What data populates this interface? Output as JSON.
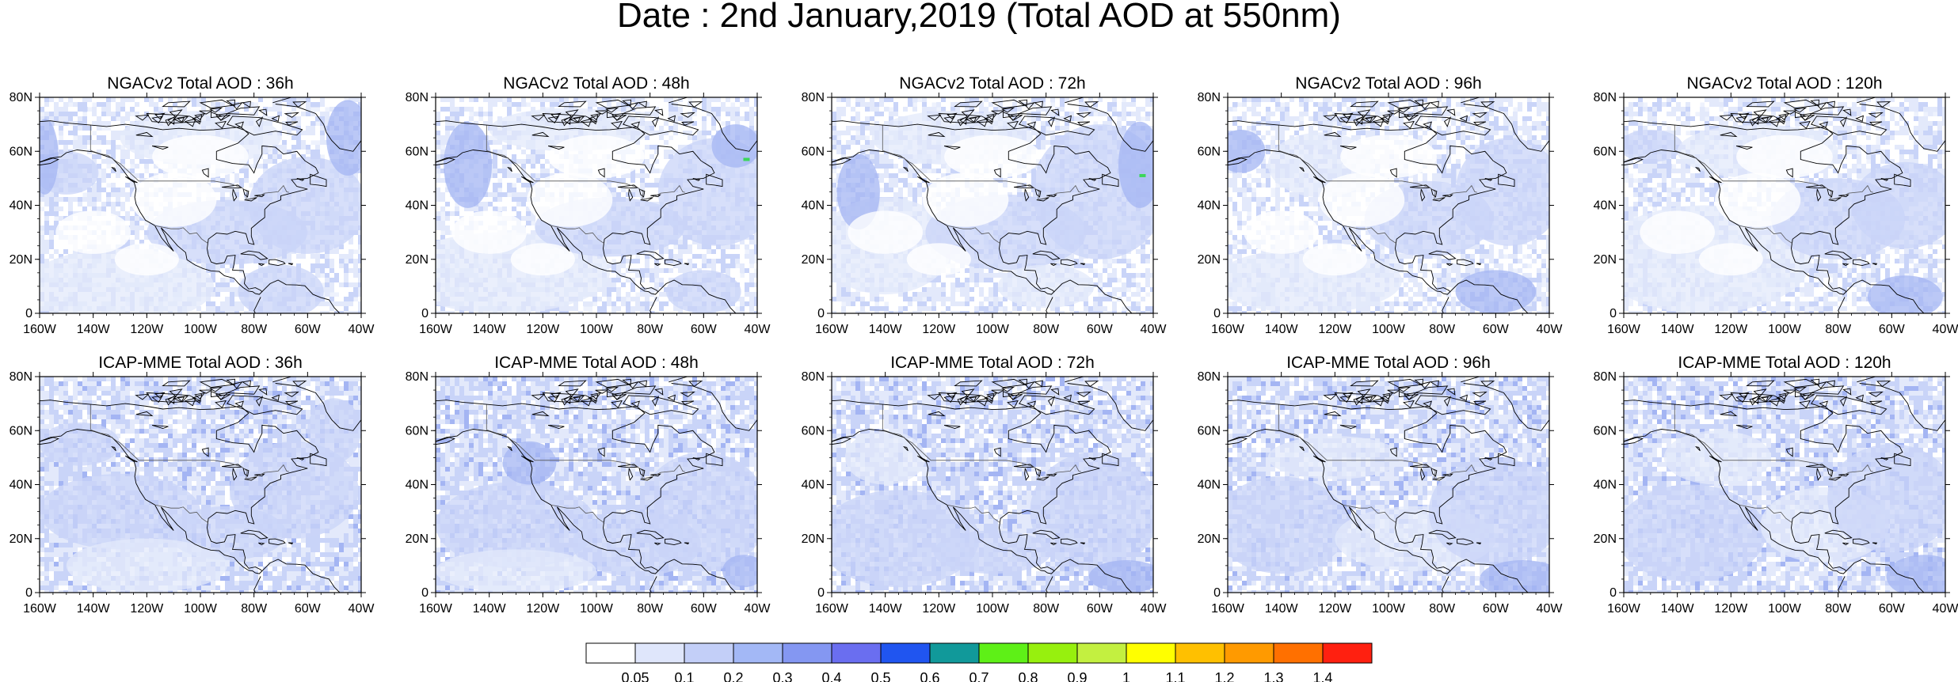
{
  "title": "Date : 2nd January,2019 (Total AOD at 550nm)",
  "panels": [
    {
      "title": "NGACv2 Total AOD : 36h",
      "row": 0,
      "model": "NGACv2",
      "lead": "36h"
    },
    {
      "title": "NGACv2 Total AOD : 48h",
      "row": 0,
      "model": "NGACv2",
      "lead": "48h"
    },
    {
      "title": "NGACv2 Total AOD : 72h",
      "row": 0,
      "model": "NGACv2",
      "lead": "72h"
    },
    {
      "title": "NGACv2 Total AOD : 96h",
      "row": 0,
      "model": "NGACv2",
      "lead": "96h"
    },
    {
      "title": "NGACv2 Total AOD : 120h",
      "row": 0,
      "model": "NGACv2",
      "lead": "120h"
    },
    {
      "title": "ICAP-MME Total AOD : 36h",
      "row": 1,
      "model": "ICAP-MME",
      "lead": "36h"
    },
    {
      "title": "ICAP-MME Total AOD : 48h",
      "row": 1,
      "model": "ICAP-MME",
      "lead": "48h"
    },
    {
      "title": "ICAP-MME Total AOD : 72h",
      "row": 1,
      "model": "ICAP-MME",
      "lead": "72h"
    },
    {
      "title": "ICAP-MME Total AOD : 96h",
      "row": 1,
      "model": "ICAP-MME",
      "lead": "96h"
    },
    {
      "title": "ICAP-MME Total AOD : 120h",
      "row": 1,
      "model": "ICAP-MME",
      "lead": "120h"
    }
  ],
  "lat_ticks": [
    "80N",
    "60N",
    "40N",
    "20N",
    "0"
  ],
  "lon_ticks": [
    "160W",
    "140W",
    "120W",
    "100W",
    "80W",
    "60W",
    "40W"
  ],
  "colorbar": {
    "labels": [
      "0.05",
      "0.1",
      "0.2",
      "0.3",
      "0.4",
      "0.5",
      "0.6",
      "0.7",
      "0.8",
      "0.9",
      "1",
      "1.1",
      "1.2",
      "1.3",
      "1.4"
    ],
    "colors": [
      "#ffffff",
      "#dfe6fb",
      "#c3cff8",
      "#a3b8f6",
      "#8497f2",
      "#6a6ef0",
      "#2055f0",
      "#11999a",
      "#5ef017",
      "#97f00e",
      "#c3f040",
      "#ffff00",
      "#ffc000",
      "#ff9a00",
      "#ff7000",
      "#ff2010"
    ]
  },
  "fill_colors": {
    "light": "#e3e9fb",
    "mid": "#c9d4f8",
    "strong": "#a4b5f3",
    "ocean": "#ffffff",
    "coast": "#000000",
    "anomaly": "#3bd65a"
  }
}
